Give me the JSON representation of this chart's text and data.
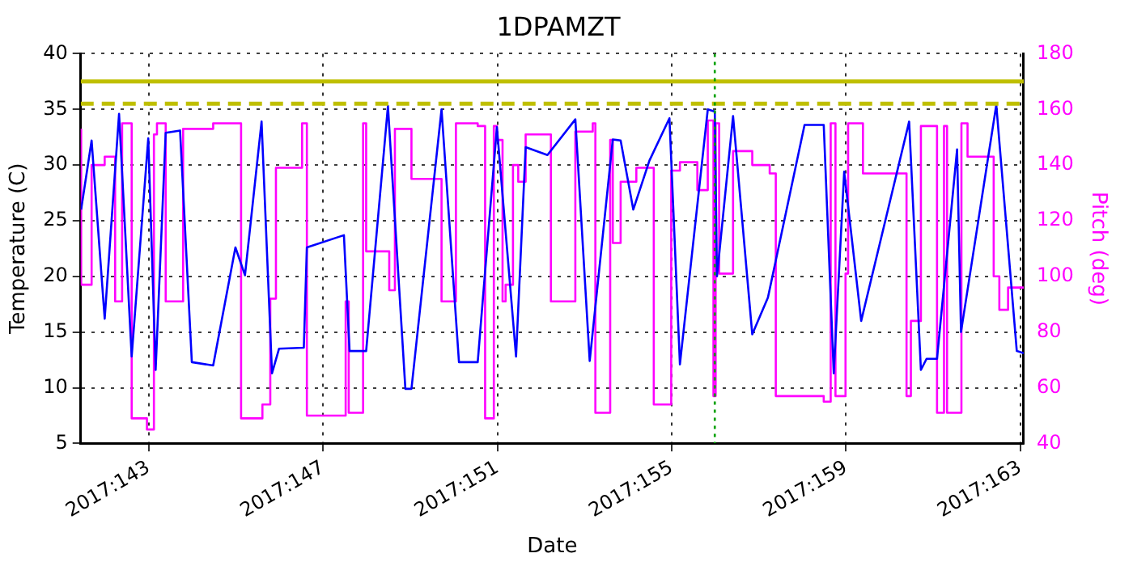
{
  "chart_data": {
    "type": "line",
    "title": "1DPAMZT",
    "xlabel": "Date",
    "ylabel": "Temperature (C)",
    "y2label": "Pitch (deg)",
    "xlim": [
      "2017-05-21T10:34",
      "2017-06-12T01:55"
    ],
    "xticks": [
      {
        "value": "2017-05-23",
        "label": "2017:143"
      },
      {
        "value": "2017-05-27",
        "label": "2017:147"
      },
      {
        "value": "2017-05-31",
        "label": "2017:151"
      },
      {
        "value": "2017-06-04",
        "label": "2017:155"
      },
      {
        "value": "2017-06-08",
        "label": "2017:159"
      },
      {
        "value": "2017-06-12",
        "label": "2017:163"
      }
    ],
    "ylim": [
      5,
      40
    ],
    "yticks": [
      5,
      10,
      15,
      20,
      25,
      30,
      35,
      40
    ],
    "y2lim": [
      40,
      180
    ],
    "y2ticks": [
      40,
      60,
      80,
      100,
      120,
      140,
      160,
      180
    ],
    "grid": true,
    "line_style": "solid",
    "marker": "none",
    "ref_lines": [
      {
        "axis": "y",
        "value": 37.5,
        "color": "#bfbf00",
        "line_style": "solid"
      },
      {
        "axis": "y",
        "value": 35.5,
        "color": "#bfbf00",
        "line_style": "dashed"
      },
      {
        "axis": "x",
        "value": "2017-06-04T23:46",
        "color": "#00a000",
        "line_style": "dotted"
      }
    ],
    "series": [
      {
        "color": "#0000ff",
        "x": [
          "2017-05-21T10:48",
          "2017-05-21T16:34",
          "2017-05-21T23:46",
          "2017-05-22T07:41",
          "2017-05-22T14:38",
          "2017-05-22T23:46",
          "2017-05-23T03:50",
          "2017-05-23T09:22",
          "2017-05-23T17:17",
          "2017-05-23T23:46",
          "2017-05-24T11:31",
          "2017-05-24T23:46",
          "2017-05-25T05:02",
          "2017-05-25T14:10",
          "2017-05-25T19:55",
          "2017-05-25T23:46",
          "2017-05-26T13:26",
          "2017-05-26T15:07",
          "2017-05-27T11:31",
          "2017-05-27T14:38",
          "2017-05-27T23:46",
          "2017-05-28T11:46",
          "2017-05-28T21:22",
          "2017-05-29T00:43",
          "2017-05-29T17:17",
          "2017-05-30T02:53",
          "2017-05-30T13:12",
          "2017-05-30T23:46",
          "2017-05-31T10:19",
          "2017-05-31T15:36",
          "2017-06-01T03:36",
          "2017-06-01T18:58",
          "2017-06-02T02:53",
          "2017-06-02T15:36",
          "2017-06-02T19:55",
          "2017-06-03T02:53",
          "2017-06-03T11:46",
          "2017-06-03T22:48",
          "2017-06-04T04:34",
          "2017-06-04T19:55",
          "2017-06-04T23:46",
          "2017-06-05T00:58",
          "2017-06-05T09:50",
          "2017-06-05T20:24",
          "2017-06-06T05:02",
          "2017-06-07T01:12",
          "2017-06-07T11:46",
          "2017-06-07T17:17",
          "2017-06-07T23:02",
          "2017-06-08T08:24",
          "2017-06-09T10:48",
          "2017-06-09T17:17",
          "2017-06-09T20:24",
          "2017-06-10T02:10",
          "2017-06-10T13:12",
          "2017-06-10T15:22",
          "2017-06-11T10:48",
          "2017-06-11T22:05",
          "2017-06-12T01:55"
        ],
        "values": [
          26.0,
          32.2,
          16.2,
          34.6,
          12.8,
          32.4,
          11.6,
          32.9,
          33.1,
          12.3,
          12.0,
          22.6,
          20.1,
          33.9,
          11.3,
          13.5,
          13.6,
          22.6,
          23.7,
          13.3,
          13.3,
          35.3,
          9.9,
          9.9,
          35.0,
          12.3,
          12.3,
          33.4,
          12.8,
          31.6,
          30.9,
          34.1,
          12.4,
          32.3,
          32.2,
          26.0,
          30.4,
          34.2,
          12.1,
          35.0,
          34.8,
          20.0,
          34.4,
          14.8,
          18.1,
          33.6,
          33.6,
          11.3,
          29.4,
          16.0,
          33.9,
          11.6,
          12.6,
          12.6,
          31.4,
          15.0,
          35.4,
          13.3,
          13.1
        ]
      },
      {
        "type": "step",
        "axis": "y2",
        "color": "#ff00ff",
        "x": [
          "2017-05-21T10:48",
          "2017-05-21T16:34",
          "2017-05-21T23:46",
          "2017-05-22T05:31",
          "2017-05-22T09:22",
          "2017-05-22T14:38",
          "2017-05-22T23:02",
          "2017-05-23T02:53",
          "2017-05-23T04:34",
          "2017-05-23T09:22",
          "2017-05-23T18:58",
          "2017-05-24T11:31",
          "2017-05-25T02:53",
          "2017-05-25T14:38",
          "2017-05-25T18:58",
          "2017-05-25T22:05",
          "2017-05-26T12:29",
          "2017-05-26T15:07",
          "2017-05-27T12:29",
          "2017-05-27T14:10",
          "2017-05-27T22:05",
          "2017-05-27T23:46",
          "2017-05-28T12:29",
          "2017-05-28T15:36",
          "2017-05-29T00:43",
          "2017-05-29T17:17",
          "2017-05-30T01:12",
          "2017-05-30T13:12",
          "2017-05-30T17:17",
          "2017-05-30T22:05",
          "2017-05-30T23:46",
          "2017-05-31T02:53",
          "2017-05-31T04:34",
          "2017-05-31T08:38",
          "2017-05-31T11:31",
          "2017-05-31T15:36",
          "2017-06-01T05:31",
          "2017-06-01T18:58",
          "2017-06-02T04:34",
          "2017-06-02T06:00",
          "2017-06-02T14:10",
          "2017-06-02T15:36",
          "2017-06-02T19:55",
          "2017-06-03T04:34",
          "2017-06-03T14:10",
          "2017-06-03T23:46",
          "2017-06-04T04:34",
          "2017-06-04T14:10",
          "2017-06-04T19:55",
          "2017-06-04T23:02",
          "2017-06-05T00:14",
          "2017-06-05T02:10",
          "2017-06-05T09:50",
          "2017-06-05T20:24",
          "2017-06-06T06:00",
          "2017-06-06T09:22",
          "2017-06-07T11:46",
          "2017-06-07T15:36",
          "2017-06-07T18:14",
          "2017-06-07T23:46",
          "2017-06-08T01:12",
          "2017-06-08T09:22",
          "2017-06-09T09:22",
          "2017-06-09T11:46",
          "2017-06-09T17:17",
          "2017-06-10T02:10",
          "2017-06-10T06:00",
          "2017-06-10T07:41",
          "2017-06-10T15:36",
          "2017-06-10T18:58",
          "2017-06-11T09:22",
          "2017-06-11T12:29",
          "2017-06-11T17:17",
          "2017-06-11T21:22",
          "2017-06-12T01:55"
        ],
        "values": [
          153,
          97,
          140,
          143,
          91,
          155,
          49,
          45,
          151,
          155,
          91,
          153,
          155,
          49,
          54,
          92,
          139,
          155,
          50,
          91,
          51,
          155,
          109,
          95,
          153,
          135,
          91,
          155,
          154,
          49,
          154,
          149,
          91,
          97,
          140,
          134,
          151,
          91,
          152,
          155,
          51,
          149,
          112,
          134,
          139,
          54,
          138,
          141,
          131,
          156,
          57,
          155,
          101,
          145,
          140,
          137,
          57,
          55,
          155,
          57,
          101,
          155,
          137,
          57,
          84,
          154,
          51,
          154,
          51,
          155,
          143,
          100,
          88,
          96,
          96
        ]
      }
    ]
  }
}
